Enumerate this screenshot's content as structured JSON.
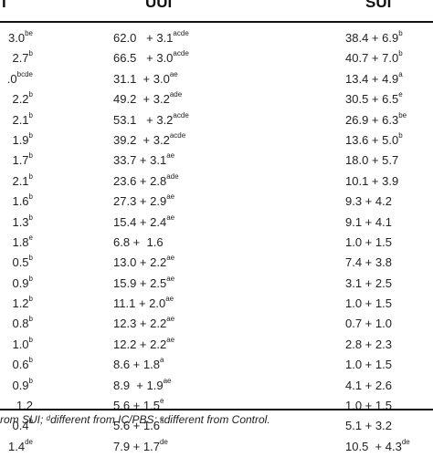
{
  "table": {
    "headers": [
      "I",
      "UUI",
      "SUI"
    ],
    "rows": [
      [
        {
          "v": "3.0",
          "s": "be"
        },
        {
          "v": "62.0   + 3.1",
          "s": "acde"
        },
        {
          "v": "38.4 + 6.9",
          "s": "b"
        }
      ],
      [
        {
          "v": "2.7",
          "s": "b"
        },
        {
          "v": "66.5   + 3.0",
          "s": "acde"
        },
        {
          "v": "40.7 + 7.0",
          "s": "b"
        }
      ],
      [
        {
          "v": ".0",
          "s": "bcde"
        },
        {
          "v": "31.1  + 3.0",
          "s": "ae"
        },
        {
          "v": "13.4 + 4.9",
          "s": "a"
        }
      ],
      [
        {
          "v": "2.2",
          "s": "b"
        },
        {
          "v": "49.2  + 3.2",
          "s": "ade"
        },
        {
          "v": "30.5 + 6.5",
          "s": "e"
        }
      ],
      [
        {
          "v": "2.1",
          "s": "b"
        },
        {
          "v": "53.1   + 3.2",
          "s": "acde"
        },
        {
          "v": "26.9 + 6.3",
          "s": "be"
        }
      ],
      [
        {
          "v": "1.9",
          "s": "b"
        },
        {
          "v": "39.2  + 3.2",
          "s": "acde"
        },
        {
          "v": "13.6 + 5.0",
          "s": "b"
        }
      ],
      [
        {
          "v": "1.7",
          "s": "b"
        },
        {
          "v": "33.7 + 3.1",
          "s": "ae"
        },
        {
          "v": "18.0 + 5.7",
          "s": ""
        }
      ],
      [
        {
          "v": "2.1",
          "s": "b"
        },
        {
          "v": "23.6 + 2.8",
          "s": "ade"
        },
        {
          "v": "10.1 + 3.9",
          "s": ""
        }
      ],
      [
        {
          "v": "1.6",
          "s": "b"
        },
        {
          "v": "27.3 + 2.9",
          "s": "ae"
        },
        {
          "v": "9.3 + 4.2",
          "s": ""
        }
      ],
      [
        {
          "v": "1.3",
          "s": "b"
        },
        {
          "v": "15.4 + 2.4",
          "s": "ae"
        },
        {
          "v": "9.1 + 4.1",
          "s": ""
        }
      ],
      [
        {
          "v": "1.8",
          "s": "e"
        },
        {
          "v": "6.8 +  1.6",
          "s": ""
        },
        {
          "v": "1.0 + 1.5",
          "s": ""
        }
      ],
      [
        {
          "v": "0.5",
          "s": "b"
        },
        {
          "v": "13.0 + 2.2",
          "s": "ae"
        },
        {
          "v": "7.4 + 3.8",
          "s": ""
        }
      ],
      [
        {
          "v": "0.9",
          "s": "b"
        },
        {
          "v": "15.9 + 2.5",
          "s": "ae"
        },
        {
          "v": "3.1 + 2.5",
          "s": ""
        }
      ],
      [
        {
          "v": "1.2",
          "s": "b"
        },
        {
          "v": "11.1 + 2.0",
          "s": "ae"
        },
        {
          "v": "1.0 + 1.5",
          "s": ""
        }
      ],
      [
        {
          "v": "0.8",
          "s": "b"
        },
        {
          "v": "12.3 + 2.2",
          "s": "ae"
        },
        {
          "v": "0.7 + 1.0",
          "s": ""
        }
      ],
      [
        {
          "v": "1.0",
          "s": "b"
        },
        {
          "v": "12.2 + 2.2",
          "s": "ae"
        },
        {
          "v": "2.8 + 2.3",
          "s": ""
        }
      ],
      [
        {
          "v": "0.6",
          "s": "b"
        },
        {
          "v": "8.6 + 1.8",
          "s": "a"
        },
        {
          "v": "1.0 + 1.5",
          "s": ""
        }
      ],
      [
        {
          "v": "0.9",
          "s": "b"
        },
        {
          "v": "8.9  + 1.9",
          "s": "ae"
        },
        {
          "v": "4.1 + 2.6",
          "s": ""
        }
      ],
      [
        {
          "v": "1.2",
          "s": ""
        },
        {
          "v": "5.6 + 1.5",
          "s": "e"
        },
        {
          "v": "1.0 + 1.5",
          "s": ""
        }
      ],
      [
        {
          "v": "0.4",
          "s": "b"
        },
        {
          "v": "5.6 + 1.6",
          "s": "a"
        },
        {
          "v": "5.1 + 3.2",
          "s": ""
        }
      ],
      [
        {
          "v": "1.4",
          "s": "de"
        },
        {
          "v": "7.9 + 1.7",
          "s": "de"
        },
        {
          "v": "10.5  + 4.3",
          "s": "de"
        }
      ]
    ]
  },
  "footnote": {
    "part1": "rom SUI; ",
    "sup_d": "d",
    "part2": "different from IC/PBS; ",
    "sup_e": "e",
    "part3": "different from Control."
  }
}
